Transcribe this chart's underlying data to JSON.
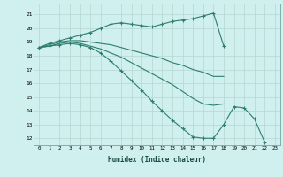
{
  "xlabel": "Humidex (Indice chaleur)",
  "ylabel": "",
  "background_color": "#cff0ee",
  "grid_color": "#b5d5d0",
  "line_color": "#2e7d6e",
  "xlim": [
    -0.5,
    23.5
  ],
  "ylim": [
    11.5,
    21.8
  ],
  "yticks": [
    12,
    13,
    14,
    15,
    16,
    17,
    18,
    19,
    20,
    21
  ],
  "xticks": [
    0,
    1,
    2,
    3,
    4,
    5,
    6,
    7,
    8,
    9,
    10,
    11,
    12,
    13,
    14,
    15,
    16,
    17,
    18,
    19,
    20,
    21,
    22,
    23
  ],
  "series": [
    {
      "x": [
        0,
        1,
        2,
        3,
        4,
        5,
        6,
        7,
        8,
        9,
        10,
        11,
        12,
        13,
        14,
        15,
        16,
        17,
        18
      ],
      "y": [
        18.6,
        18.9,
        19.1,
        19.3,
        19.5,
        19.7,
        20.0,
        20.3,
        20.4,
        20.3,
        20.2,
        20.1,
        20.3,
        20.5,
        20.6,
        20.7,
        20.9,
        21.1,
        18.7
      ],
      "marker": true
    },
    {
      "x": [
        0,
        1,
        2,
        3,
        4,
        5,
        6,
        7,
        8,
        9,
        10,
        11,
        12,
        13,
        14,
        15,
        16,
        17,
        18
      ],
      "y": [
        18.6,
        18.8,
        19.0,
        19.1,
        19.1,
        19.0,
        18.9,
        18.8,
        18.6,
        18.4,
        18.2,
        18.0,
        17.8,
        17.5,
        17.3,
        17.0,
        16.8,
        16.5,
        16.5
      ],
      "marker": false
    },
    {
      "x": [
        0,
        1,
        2,
        3,
        4,
        5,
        6,
        7,
        8,
        9,
        10,
        11,
        12,
        13,
        14,
        15,
        16,
        17,
        18
      ],
      "y": [
        18.6,
        18.7,
        18.9,
        19.0,
        18.9,
        18.7,
        18.5,
        18.2,
        17.9,
        17.5,
        17.1,
        16.7,
        16.3,
        15.9,
        15.4,
        14.9,
        14.5,
        14.4,
        14.5
      ],
      "marker": false
    },
    {
      "x": [
        0,
        1,
        2,
        3,
        4,
        5,
        6,
        7,
        8,
        9,
        10,
        11,
        12,
        13,
        14,
        15,
        16,
        17,
        18,
        19,
        20,
        21,
        22
      ],
      "y": [
        18.6,
        18.7,
        18.8,
        18.9,
        18.8,
        18.6,
        18.2,
        17.6,
        16.9,
        16.2,
        15.5,
        14.7,
        14.0,
        13.3,
        12.7,
        12.1,
        12.0,
        12.0,
        13.0,
        14.3,
        14.2,
        13.4,
        11.7
      ],
      "marker": true
    }
  ]
}
